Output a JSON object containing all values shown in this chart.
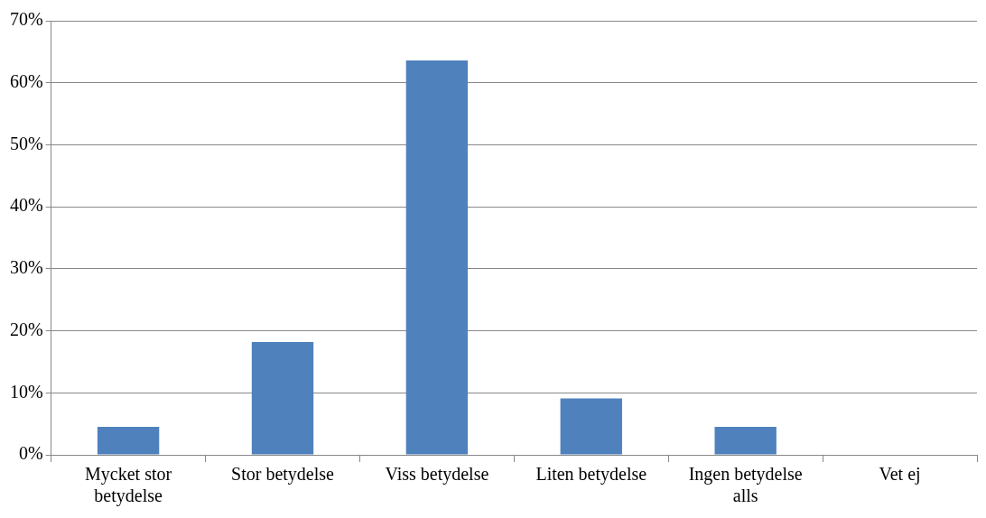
{
  "chart_data": {
    "type": "bar",
    "categories": [
      "Mycket stor betydelse",
      "Stor betydelse",
      "Viss betydelse",
      "Liten betydelse",
      "Ingen betydelse alls",
      "Vet ej"
    ],
    "values": [
      4.5,
      18.2,
      63.6,
      9.1,
      4.5,
      0
    ],
    "color": "#4f81bd",
    "ylim": [
      0,
      70
    ],
    "yticks": [
      {
        "value": 0,
        "label": "0%"
      },
      {
        "value": 10,
        "label": "10%"
      },
      {
        "value": 20,
        "label": "20%"
      },
      {
        "value": 30,
        "label": "30%"
      },
      {
        "value": 40,
        "label": "40%"
      },
      {
        "value": 50,
        "label": "50%"
      },
      {
        "value": 60,
        "label": "60%"
      },
      {
        "value": 70,
        "label": "70%"
      }
    ],
    "grid": "y",
    "legend": false
  }
}
